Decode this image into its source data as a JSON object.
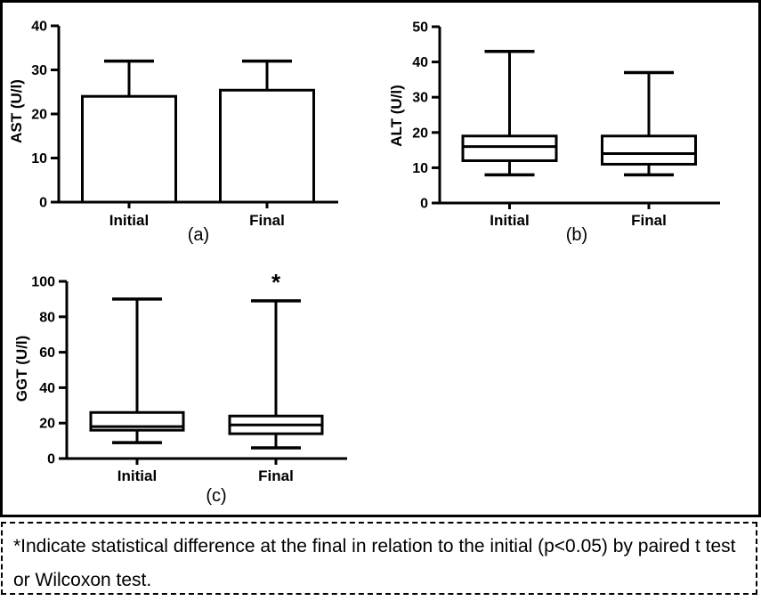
{
  "figure": {
    "footnote": "*Indicate statistical difference at the final in relation to the initial (p<0.05) by paired t test or Wilcoxon test.",
    "ink_color": "#000000",
    "background_color": "#ffffff"
  },
  "chart_data": [
    {
      "type": "bar",
      "panel": "(a)",
      "title": "",
      "xlabel": "",
      "ylabel": "AST (U/l)",
      "ylim": [
        0,
        40
      ],
      "yticks": [
        0,
        10,
        20,
        30,
        40
      ],
      "grid": false,
      "legend": false,
      "categories": [
        "Initial",
        "Final"
      ],
      "series": [
        {
          "category": "Initial",
          "mean": 24,
          "error_high": 32
        },
        {
          "category": "Final",
          "mean": 25.4,
          "error_high": 32
        }
      ]
    },
    {
      "type": "boxplot",
      "panel": "(b)",
      "title": "",
      "xlabel": "",
      "ylabel": "ALT (U/l)",
      "ylim": [
        0,
        50
      ],
      "yticks": [
        0,
        10,
        20,
        30,
        40,
        50
      ],
      "grid": false,
      "legend": false,
      "categories": [
        "Initial",
        "Final"
      ],
      "series": [
        {
          "category": "Initial",
          "min": 8,
          "q1": 12,
          "median": 16,
          "q3": 19,
          "max": 43
        },
        {
          "category": "Final",
          "min": 8,
          "q1": 11,
          "median": 14,
          "q3": 19,
          "max": 37
        }
      ]
    },
    {
      "type": "boxplot",
      "panel": "(c)",
      "title": "",
      "xlabel": "",
      "ylabel": "GGT (U/l)",
      "ylim": [
        0,
        100
      ],
      "yticks": [
        0,
        20,
        40,
        60,
        80,
        100
      ],
      "grid": false,
      "legend": false,
      "categories": [
        "Initial",
        "Final"
      ],
      "series": [
        {
          "category": "Initial",
          "min": 9,
          "q1": 16,
          "median": 18,
          "q3": 26,
          "max": 90
        },
        {
          "category": "Final",
          "min": 6,
          "q1": 14,
          "median": 19,
          "q3": 24,
          "max": 89
        }
      ],
      "annotations": [
        {
          "text": "*",
          "category": "Final"
        }
      ]
    }
  ]
}
